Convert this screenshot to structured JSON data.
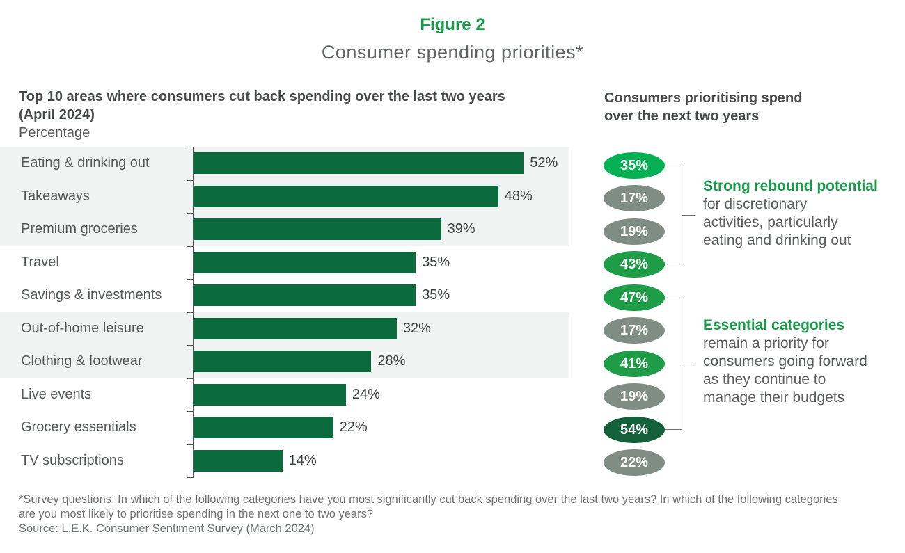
{
  "figure": {
    "label": "Figure 2",
    "title": "Consumer spending priorities*"
  },
  "left_panel": {
    "heading": "Top 10 areas where consumers cut back spending over the last two years\n(April 2024)",
    "unit_label": "Percentage"
  },
  "right_panel": {
    "heading": "Consumers prioritising spend\nover the next two years"
  },
  "chart_data": {
    "type": "bar",
    "orientation": "horizontal",
    "title": "Top 10 areas where consumers cut back spending over the last two years (April 2024)",
    "xlabel": "Percentage",
    "xlim": [
      0,
      57
    ],
    "value_suffix": "%",
    "categories": [
      "Eating & drinking out",
      "Takeaways",
      "Premium groceries",
      "Travel",
      "Savings & investments",
      "Out-of-home leisure",
      "Clothing & footwear",
      "Live events",
      "Grocery essentials",
      "TV subscriptions"
    ],
    "values": [
      52,
      48,
      39,
      35,
      35,
      32,
      28,
      24,
      22,
      14
    ],
    "shaded_rows": [
      0,
      1,
      2,
      5,
      6
    ],
    "priority_badges": [
      {
        "value": "35%",
        "color": "bright"
      },
      {
        "value": "17%",
        "color": "grey"
      },
      {
        "value": "19%",
        "color": "grey"
      },
      {
        "value": "43%",
        "color": "medium"
      },
      {
        "value": "47%",
        "color": "medium"
      },
      {
        "value": "17%",
        "color": "grey"
      },
      {
        "value": "41%",
        "color": "medium"
      },
      {
        "value": "19%",
        "color": "grey"
      },
      {
        "value": "54%",
        "color": "dark"
      },
      {
        "value": "22%",
        "color": "grey"
      }
    ],
    "annotations": [
      {
        "highlight": "Strong rebound potential",
        "body": "for discretionary\nactivities, particularly\neating and drinking out",
        "badge_span": [
          0,
          3
        ]
      },
      {
        "highlight": "Essential categories",
        "body": "remain a priority for\nconsumers going forward\nas they continue to\nmanage their budgets",
        "badge_span": [
          4,
          8
        ]
      }
    ],
    "legend_position": "none",
    "grid": false
  },
  "colors": {
    "bar_green": "#0c6b3d",
    "bright_green": "#04b054",
    "medium_green": "#1e9c47",
    "dark_green": "#14603a",
    "badge_grey": "#7f8d85",
    "accent_green": "#189c49",
    "band_grey": "#eff3f1"
  },
  "footnotes": {
    "survey": "*Survey questions: In which of the following categories have you most significantly cut back spending over the last two years? In which of the following categories are you most likely to prioritise spending in the next one to two years?",
    "source": "Source: L.E.K. Consumer Sentiment Survey (March 2024)"
  }
}
